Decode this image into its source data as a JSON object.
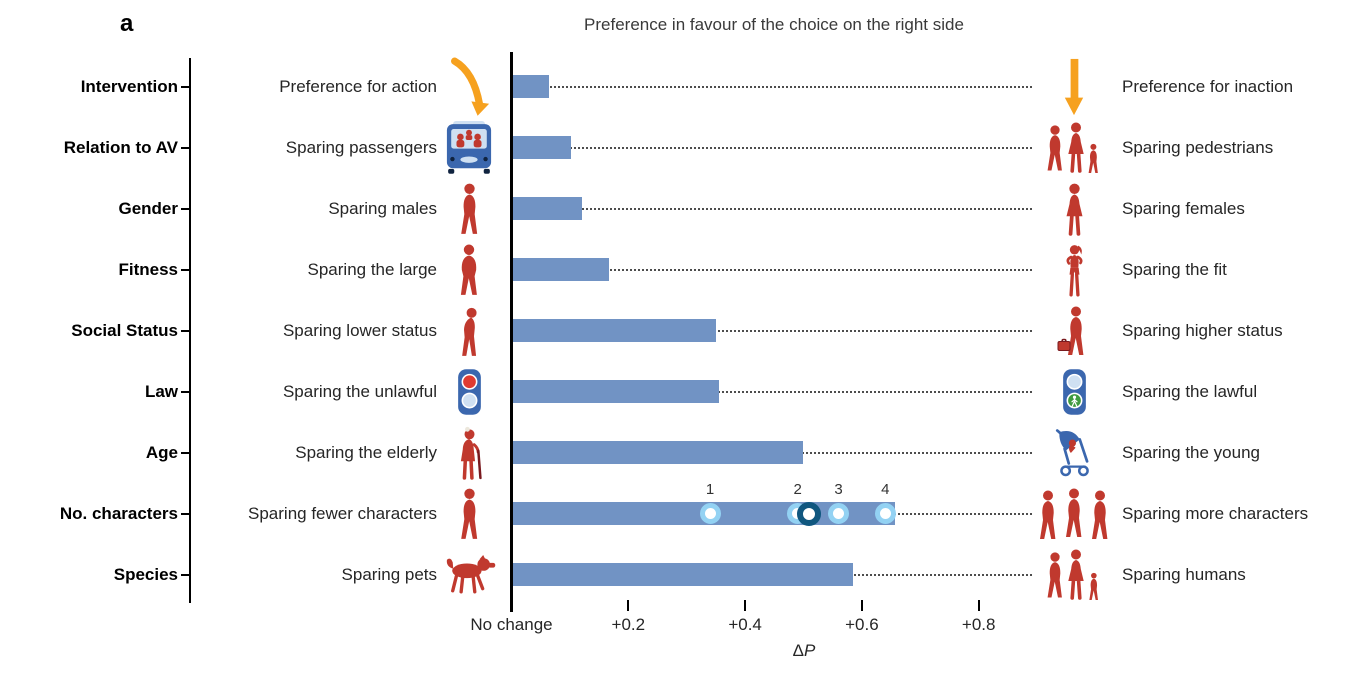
{
  "colors": {
    "bar_blue": "#7193c4",
    "marker_light_ring": "#93d2f3",
    "marker_dark_ring": "#10577f",
    "arrow_orange": "#f6a11f",
    "figure_red": "#c0392e",
    "figure_dark_red": "#7a1a1f",
    "vehicle_blue": "#3b67ae",
    "pale_blue": "#cfe0f2",
    "signal_red": "#e03c31",
    "walk_green": "#3f9b3f",
    "leader_gray": "#4d4d4d",
    "text_dark": "#262626"
  },
  "chart_data": {
    "type": "bar",
    "orientation": "horizontal",
    "panel_label": "a",
    "title": "Preference in favour of the choice on the right side",
    "xlabel": "ΔP",
    "xlabel_delta": "Δ",
    "xlabel_var": "P",
    "axis": {
      "xlim": [
        0,
        0.9
      ],
      "zero_label": "No change",
      "ticks": [
        {
          "label": "No change",
          "value": 0
        },
        {
          "label": "+0.2",
          "value": 0.2
        },
        {
          "label": "+0.4",
          "value": 0.4
        },
        {
          "label": "+0.6",
          "value": 0.6
        },
        {
          "label": "+0.8",
          "value": 0.8
        }
      ],
      "grid": false
    },
    "rows": [
      {
        "category": "Intervention",
        "left": "Preference for action",
        "right": "Preference for inaction",
        "value": 0.062,
        "left_icon": "swerve-arrow-icon",
        "right_icon": "straight-arrow-icon"
      },
      {
        "category": "Relation to AV",
        "left": "Sparing passengers",
        "right": "Sparing pedestrians",
        "value": 0.099,
        "left_icon": "bus-passengers-icon",
        "right_icon": "pedestrians-icon"
      },
      {
        "category": "Gender",
        "left": "Sparing males",
        "right": "Sparing females",
        "value": 0.119,
        "left_icon": "male-icon",
        "right_icon": "female-icon"
      },
      {
        "category": "Fitness",
        "left": "Sparing the large",
        "right": "Sparing the fit",
        "value": 0.164,
        "left_icon": "large-person-icon",
        "right_icon": "fit-person-icon"
      },
      {
        "category": "Social Status",
        "left": "Sparing lower status",
        "right": "Sparing higher status",
        "value": 0.347,
        "left_icon": "lower-status-person-icon",
        "right_icon": "higher-status-person-icon"
      },
      {
        "category": "Law",
        "left": "Sparing the unlawful",
        "right": "Sparing the lawful",
        "value": 0.353,
        "left_icon": "traffic-light-red-icon",
        "right_icon": "traffic-light-green-icon"
      },
      {
        "category": "Age",
        "left": "Sparing the elderly",
        "right": "Sparing the young",
        "value": 0.497,
        "left_icon": "elderly-person-icon",
        "right_icon": "stroller-icon"
      },
      {
        "category": "No. characters",
        "left": "Sparing fewer characters",
        "right": "Sparing more characters",
        "value": 0.654,
        "left_icon": "single-person-icon",
        "right_icon": "three-persons-icon",
        "markers": [
          {
            "label": "1",
            "value": 0.34
          },
          {
            "label": "2",
            "value": 0.49
          },
          {
            "label": "3",
            "value": 0.56
          },
          {
            "label": "4",
            "value": 0.64
          }
        ],
        "mean_marker_value": 0.51
      },
      {
        "category": "Species",
        "left": "Sparing pets",
        "right": "Sparing humans",
        "value": 0.583,
        "left_icon": "dog-icon",
        "right_icon": "humans-group-icon"
      }
    ]
  }
}
